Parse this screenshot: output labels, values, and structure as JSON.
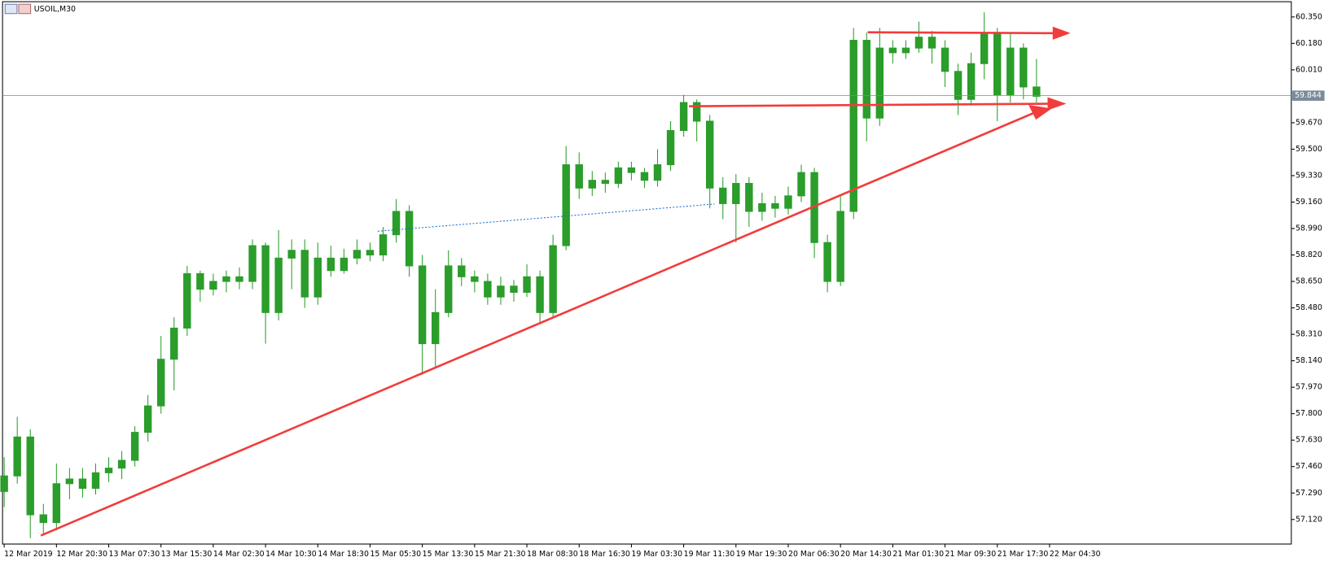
{
  "chart_data": {
    "type": "candlestick",
    "title": "USOIL,M30",
    "color": "#2a9d2a",
    "x": [
      0,
      4,
      8,
      12,
      16,
      20,
      24,
      28,
      32,
      36,
      40,
      44,
      48,
      52,
      56,
      60,
      64,
      68,
      72,
      76,
      80,
      84,
      88,
      92,
      96,
      100,
      104,
      108,
      112,
      116,
      120,
      124,
      128,
      132,
      136,
      140,
      144,
      148,
      152,
      156,
      160,
      164,
      168,
      172,
      176,
      180,
      184,
      188,
      192,
      196,
      200,
      204,
      208,
      212,
      216,
      220,
      224,
      228,
      232,
      236,
      240,
      244,
      248,
      252,
      256,
      260,
      264,
      268,
      272,
      276,
      280,
      284,
      288,
      292,
      296,
      300,
      304,
      308,
      312,
      316
    ],
    "open": [
      57.3,
      57.4,
      57.65,
      57.15,
      57.1,
      57.35,
      57.38,
      57.32,
      57.42,
      57.45,
      57.5,
      57.68,
      57.85,
      58.15,
      58.35,
      58.7,
      58.6,
      58.65,
      58.68,
      58.65,
      58.88,
      58.45,
      58.8,
      58.85,
      58.55,
      58.8,
      58.72,
      58.8,
      58.85,
      58.82,
      58.95,
      59.1,
      58.75,
      58.25,
      58.45,
      58.75,
      58.68,
      58.65,
      58.55,
      58.62,
      58.58,
      58.68,
      58.45,
      58.88,
      59.4,
      59.25,
      59.3,
      59.28,
      59.38,
      59.35,
      59.3,
      59.4,
      59.62,
      59.8,
      59.68,
      59.25,
      59.15,
      59.28,
      59.1,
      59.15,
      59.12,
      59.2,
      59.35,
      58.9,
      58.65,
      59.1,
      60.2,
      59.7,
      60.15,
      60.12,
      60.15,
      60.22,
      60.15,
      60.0,
      59.82,
      60.05,
      60.25,
      59.85,
      60.15,
      59.9
    ],
    "high": [
      57.52,
      57.78,
      57.7,
      57.22,
      57.48,
      57.45,
      57.45,
      57.48,
      57.52,
      57.56,
      57.72,
      57.92,
      58.3,
      58.42,
      58.75,
      58.72,
      58.7,
      58.72,
      58.74,
      58.92,
      58.9,
      58.98,
      58.92,
      58.92,
      58.9,
      58.88,
      58.86,
      58.92,
      58.9,
      59.0,
      59.18,
      59.14,
      58.82,
      58.6,
      58.85,
      58.8,
      58.72,
      58.7,
      58.68,
      58.66,
      58.76,
      58.72,
      58.95,
      59.52,
      59.48,
      59.36,
      59.35,
      59.42,
      59.42,
      59.38,
      59.5,
      59.68,
      59.85,
      59.82,
      59.72,
      59.32,
      59.34,
      59.32,
      59.22,
      59.2,
      59.26,
      59.4,
      59.38,
      58.95,
      59.2,
      60.28,
      60.25,
      60.28,
      60.2,
      60.2,
      60.32,
      60.26,
      60.2,
      60.05,
      60.12,
      60.38,
      60.28,
      60.25,
      60.18,
      60.08
    ],
    "low": [
      57.2,
      57.35,
      57.0,
      57.02,
      57.05,
      57.25,
      57.26,
      57.28,
      57.36,
      57.38,
      57.46,
      57.62,
      57.8,
      57.95,
      58.3,
      58.52,
      58.56,
      58.58,
      58.6,
      58.6,
      58.25,
      58.4,
      58.6,
      58.48,
      58.5,
      58.68,
      58.7,
      58.76,
      58.78,
      58.78,
      58.9,
      58.68,
      58.05,
      58.1,
      58.42,
      58.62,
      58.58,
      58.5,
      58.5,
      58.52,
      58.55,
      58.38,
      58.42,
      58.85,
      59.18,
      59.2,
      59.22,
      59.25,
      59.3,
      59.25,
      59.26,
      59.36,
      59.58,
      59.55,
      59.12,
      59.05,
      58.9,
      59.0,
      59.04,
      59.06,
      59.08,
      59.16,
      58.8,
      58.58,
      58.62,
      59.05,
      59.55,
      59.65,
      60.05,
      60.08,
      60.12,
      60.05,
      59.9,
      59.72,
      59.78,
      59.95,
      59.68,
      59.8,
      59.82,
      59.8
    ],
    "close": [
      57.4,
      57.65,
      57.15,
      57.1,
      57.35,
      57.38,
      57.32,
      57.42,
      57.45,
      57.5,
      57.68,
      57.85,
      58.15,
      58.35,
      58.7,
      58.6,
      58.65,
      58.68,
      58.65,
      58.88,
      58.45,
      58.8,
      58.85,
      58.55,
      58.8,
      58.72,
      58.8,
      58.85,
      58.82,
      58.95,
      59.1,
      58.75,
      58.25,
      58.45,
      58.75,
      58.68,
      58.65,
      58.55,
      58.62,
      58.58,
      58.68,
      58.45,
      58.88,
      59.4,
      59.25,
      59.3,
      59.28,
      59.38,
      59.35,
      59.3,
      59.4,
      59.62,
      59.8,
      59.68,
      59.25,
      59.15,
      59.28,
      59.1,
      59.15,
      59.12,
      59.2,
      59.35,
      58.9,
      58.65,
      59.1,
      60.2,
      59.7,
      60.15,
      60.12,
      60.15,
      60.22,
      60.15,
      60.0,
      59.82,
      60.05,
      60.25,
      59.85,
      60.15,
      59.9,
      59.84
    ],
    "last_price": 59.844,
    "xlim": [
      -0.5,
      394
    ],
    "xticks": [
      {
        "value": 0,
        "label": "12 Mar 2019"
      },
      {
        "value": 16,
        "label": "12 Mar 20:30"
      },
      {
        "value": 32,
        "label": "13 Mar 07:30"
      },
      {
        "value": 48,
        "label": "13 Mar 15:30"
      },
      {
        "value": 64,
        "label": "14 Mar 02:30"
      },
      {
        "value": 80,
        "label": "14 Mar 10:30"
      },
      {
        "value": 96,
        "label": "14 Mar 18:30"
      },
      {
        "value": 112,
        "label": "15 Mar 05:30"
      },
      {
        "value": 128,
        "label": "15 Mar 13:30"
      },
      {
        "value": 144,
        "label": "15 Mar 21:30"
      },
      {
        "value": 160,
        "label": "18 Mar 08:30"
      },
      {
        "value": 176,
        "label": "18 Mar 16:30"
      },
      {
        "value": 192,
        "label": "19 Mar 03:30"
      },
      {
        "value": 208,
        "label": "19 Mar 11:30"
      },
      {
        "value": 224,
        "label": "19 Mar 19:30"
      },
      {
        "value": 240,
        "label": "20 Mar 06:30"
      },
      {
        "value": 256,
        "label": "20 Mar 14:30"
      },
      {
        "value": 272,
        "label": "21 Mar 01:30"
      },
      {
        "value": 288,
        "label": "21 Mar 09:30"
      },
      {
        "value": 304,
        "label": "21 Mar 17:30"
      },
      {
        "value": 320,
        "label": "22 Mar 04:30"
      }
    ],
    "ylim": [
      56.962,
      60.448
    ],
    "yticks": [
      {
        "value": 57.12,
        "label": "57.120"
      },
      {
        "value": 57.29,
        "label": "57.290"
      },
      {
        "value": 57.46,
        "label": "57.460"
      },
      {
        "value": 57.63,
        "label": "57.630"
      },
      {
        "value": 57.8,
        "label": "57.800"
      },
      {
        "value": 57.97,
        "label": "57.970"
      },
      {
        "value": 58.14,
        "label": "58.140"
      },
      {
        "value": 58.31,
        "label": "58.310"
      },
      {
        "value": 58.48,
        "label": "58.480"
      },
      {
        "value": 58.65,
        "label": "58.650"
      },
      {
        "value": 58.82,
        "label": "58.820"
      },
      {
        "value": 58.99,
        "label": "58.990"
      },
      {
        "value": 59.16,
        "label": "59.160"
      },
      {
        "value": 59.33,
        "label": "59.330"
      },
      {
        "value": 59.5,
        "label": "59.500"
      },
      {
        "value": 59.67,
        "label": "59.670"
      },
      {
        "value": 60.01,
        "label": "60.010"
      },
      {
        "value": 60.18,
        "label": "60.180"
      },
      {
        "value": 60.35,
        "label": "60.350"
      }
    ]
  }
}
